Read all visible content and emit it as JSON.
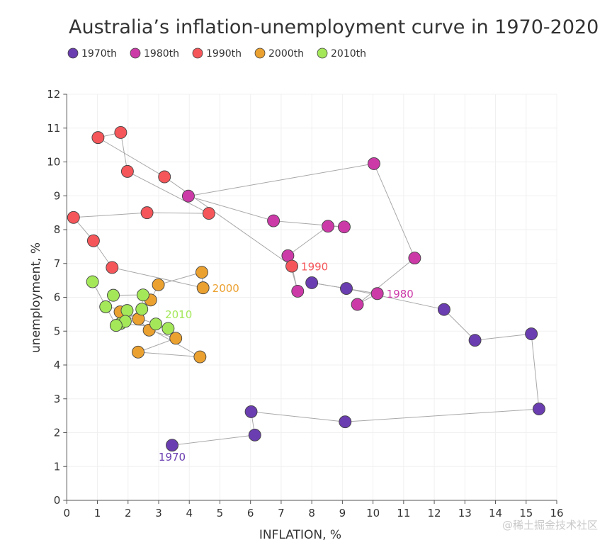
{
  "chart_data": {
    "type": "scatter",
    "title": "Australia’s inflation-unemployment curve in 1970-2020",
    "xlabel": "INFLATION, %",
    "ylabel": "unemployment, %",
    "xlim": [
      0,
      16
    ],
    "ylim": [
      0,
      12
    ],
    "x_ticks": [
      "0",
      "1",
      "2",
      "3",
      "4",
      "5",
      "6",
      "7",
      "8",
      "9",
      "10",
      "11",
      "12",
      "13",
      "14",
      "15",
      "16"
    ],
    "y_ticks": [
      "0",
      "1",
      "2",
      "3",
      "4",
      "5",
      "6",
      "7",
      "8",
      "9",
      "10",
      "11",
      "12"
    ],
    "grid": true,
    "legend_position": "top-left",
    "connected": true,
    "line_color": "#a8a8a8",
    "series": [
      {
        "name": "1970th",
        "color": "#6a3db0",
        "label": "1970",
        "points": [
          [
            3.44,
            1.63
          ],
          [
            6.14,
            1.93
          ],
          [
            6.02,
            2.62
          ],
          [
            9.09,
            2.32
          ],
          [
            15.42,
            2.7
          ],
          [
            15.17,
            4.92
          ],
          [
            13.33,
            4.73
          ],
          [
            12.32,
            5.64
          ],
          [
            9.13,
            6.26
          ],
          [
            8.0,
            6.43
          ]
        ]
      },
      {
        "name": "1980th",
        "color": "#cc3aa8",
        "label": "1980",
        "points": [
          [
            10.14,
            6.11
          ],
          [
            9.49,
            5.79
          ],
          [
            11.36,
            7.16
          ],
          [
            10.03,
            9.95
          ],
          [
            3.97,
            8.99
          ],
          [
            6.75,
            8.26
          ],
          [
            9.06,
            8.08
          ],
          [
            8.53,
            8.1
          ],
          [
            7.22,
            7.23
          ],
          [
            7.54,
            6.18
          ]
        ]
      },
      {
        "name": "1990th",
        "color": "#f5565a",
        "label": "1990",
        "points": [
          [
            7.35,
            6.92
          ],
          [
            3.19,
            9.56
          ],
          [
            1.02,
            10.72
          ],
          [
            1.76,
            10.87
          ],
          [
            1.98,
            9.72
          ],
          [
            4.64,
            8.48
          ],
          [
            2.62,
            8.5
          ],
          [
            0.22,
            8.36
          ],
          [
            0.87,
            7.67
          ],
          [
            1.48,
            6.88
          ]
        ]
      },
      {
        "name": "2000th",
        "color": "#eba130",
        "label": "2000",
        "points": [
          [
            4.45,
            6.28
          ],
          [
            4.41,
            6.74
          ],
          [
            2.99,
            6.37
          ],
          [
            2.74,
            5.92
          ],
          [
            2.34,
            5.36
          ],
          [
            2.69,
            5.03
          ],
          [
            3.56,
            4.79
          ],
          [
            2.33,
            4.38
          ],
          [
            4.35,
            4.24
          ],
          [
            1.74,
            5.57
          ]
        ]
      },
      {
        "name": "2010th",
        "color": "#a4e85a",
        "label": "2010",
        "points": [
          [
            2.91,
            5.21
          ],
          [
            3.31,
            5.08
          ],
          [
            1.76,
            5.23
          ],
          [
            2.45,
            5.65
          ],
          [
            2.49,
            6.07
          ],
          [
            1.52,
            6.06
          ],
          [
            1.27,
            5.72
          ],
          [
            1.97,
            5.61
          ],
          [
            1.91,
            5.29
          ],
          [
            1.61,
            5.17
          ],
          [
            0.84,
            6.46
          ]
        ]
      }
    ]
  },
  "watermark": "@稀土掘金技术社区"
}
